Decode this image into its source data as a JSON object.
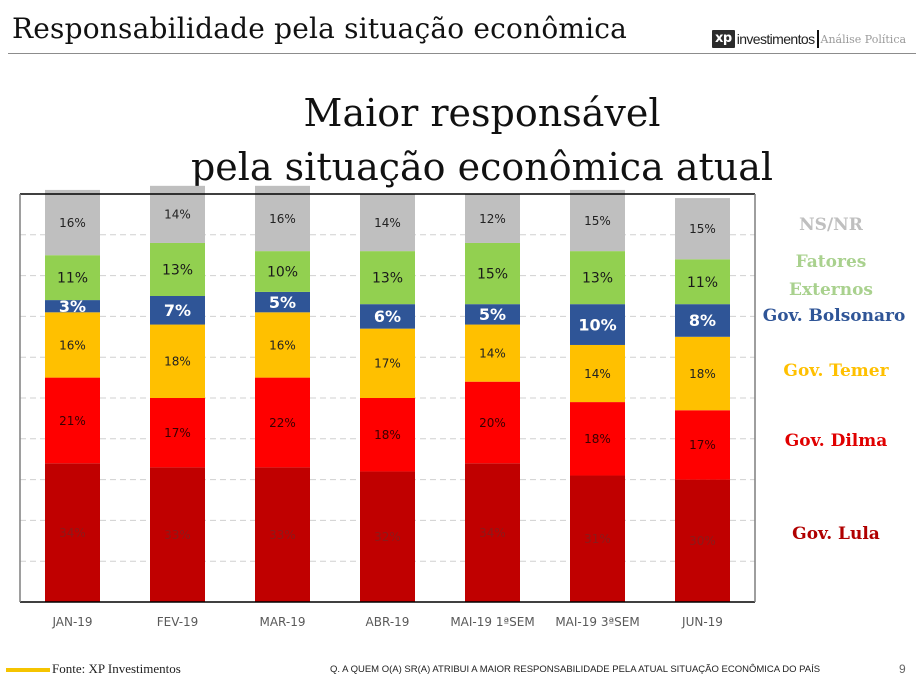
{
  "header": {
    "title": "Responsabilidade pela situação econômica",
    "brand_mark": "xp",
    "brand_name": "investimentos",
    "brand_section": "Análise Política"
  },
  "chart_title_line1": "Maior responsável",
  "chart_title_line2": "pela situação econômica atual",
  "chart_data": {
    "type": "bar",
    "stacked": true,
    "title": "Maior responsável pela situação econômica atual",
    "xlabel": "",
    "ylabel": "",
    "ylim": [
      0,
      100
    ],
    "grid": true,
    "legend_placement": "right",
    "categories": [
      "JAN-19",
      "FEV-19",
      "MAR-19",
      "ABR-19",
      "MAI-19 1ªSEM",
      "MAI-19 3ªSEM",
      "JUN-19"
    ],
    "series": [
      {
        "name": "Gov. Lula",
        "color": "#c00000",
        "label_color": "#8b1a1a",
        "values": [
          34,
          33,
          33,
          32,
          34,
          31,
          30
        ]
      },
      {
        "name": "Gov. Dilma",
        "color": "#ff0000",
        "label_color": "#3a0000",
        "values": [
          21,
          17,
          22,
          18,
          20,
          18,
          17
        ]
      },
      {
        "name": "Gov. Temer",
        "color": "#ffc000",
        "label_color": "#222222",
        "values": [
          16,
          18,
          16,
          17,
          14,
          14,
          18
        ]
      },
      {
        "name": "Gov. Bolsonaro",
        "color": "#2f5597",
        "label_color": "#ffffff",
        "values": [
          3,
          7,
          5,
          6,
          5,
          10,
          8
        ]
      },
      {
        "name": "Fatores Externos",
        "color": "#92d050",
        "label_color": "#1a1a1a",
        "values": [
          11,
          13,
          10,
          13,
          15,
          13,
          11
        ]
      },
      {
        "name": "NS/NR",
        "color": "#bfbfbf",
        "label_color": "#222222",
        "values": [
          16,
          14,
          16,
          14,
          12,
          15,
          15
        ]
      }
    ],
    "data_labels": true,
    "label_suffix": "%"
  },
  "legend": [
    {
      "name": "NS/NR",
      "color": "#bfbfbf"
    },
    {
      "name": "Fatores",
      "color": "#a9d18e"
    },
    {
      "name": "Externos",
      "color": "#a9d18e"
    },
    {
      "name": "Gov. Bolsonaro",
      "color": "#2f5597"
    },
    {
      "name": "Gov. Temer",
      "color": "#ffc000"
    },
    {
      "name": "Gov. Dilma",
      "color": "#e00000"
    },
    {
      "name": "Gov. Lula",
      "color": "#b00000"
    }
  ],
  "footer": {
    "source": "Fonte: XP Investimentos",
    "question": "Q. A QUEM O(A) SR(A) ATRIBUI A MAIOR RESPONSABILIDADE PELA ATUAL  SITUAÇÃO ECONÔMICA DO PAÍS",
    "page_number": "9"
  }
}
